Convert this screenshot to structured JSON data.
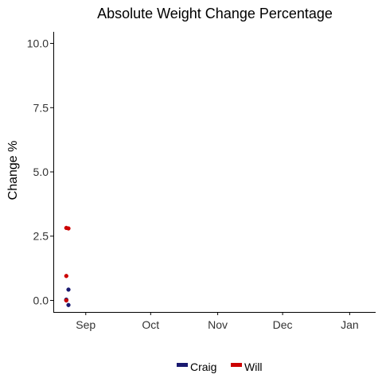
{
  "chart_data": {
    "type": "scatter",
    "title": "Absolute Weight Change Percentage",
    "xlabel": "",
    "ylabel": "Change %",
    "x_ticks": [
      {
        "date": "2023-09-01",
        "label": "Sep"
      },
      {
        "date": "2023-10-01",
        "label": "Oct"
      },
      {
        "date": "2023-11-01",
        "label": "Nov"
      },
      {
        "date": "2023-12-01",
        "label": "Dec"
      },
      {
        "date": "2024-01-01",
        "label": "Jan"
      }
    ],
    "xlim": [
      "2023-08-17",
      "2024-01-13"
    ],
    "ylim": [
      -0.45,
      10.45
    ],
    "y_ticks": [
      0.0,
      2.5,
      5.0,
      7.5,
      10.0
    ],
    "y_tick_labels": [
      "0.0",
      "2.5",
      "5.0",
      "7.5",
      "10.0"
    ],
    "grid": false,
    "legend_position": "bottom",
    "series": [
      {
        "name": "Craig",
        "color": "#191970",
        "points": [
          {
            "x": "2023-08-23",
            "y": 0.03
          },
          {
            "x": "2023-08-23",
            "y": 0.0
          },
          {
            "x": "2023-08-24",
            "y": 0.42
          },
          {
            "x": "2023-08-24",
            "y": -0.18
          }
        ]
      },
      {
        "name": "Will",
        "color": "#cc0000",
        "points": [
          {
            "x": "2023-08-23",
            "y": 2.82
          },
          {
            "x": "2023-08-23",
            "y": 0.95
          },
          {
            "x": "2023-08-24",
            "y": 2.8
          },
          {
            "x": "2023-08-23",
            "y": 0.0
          }
        ]
      }
    ]
  }
}
